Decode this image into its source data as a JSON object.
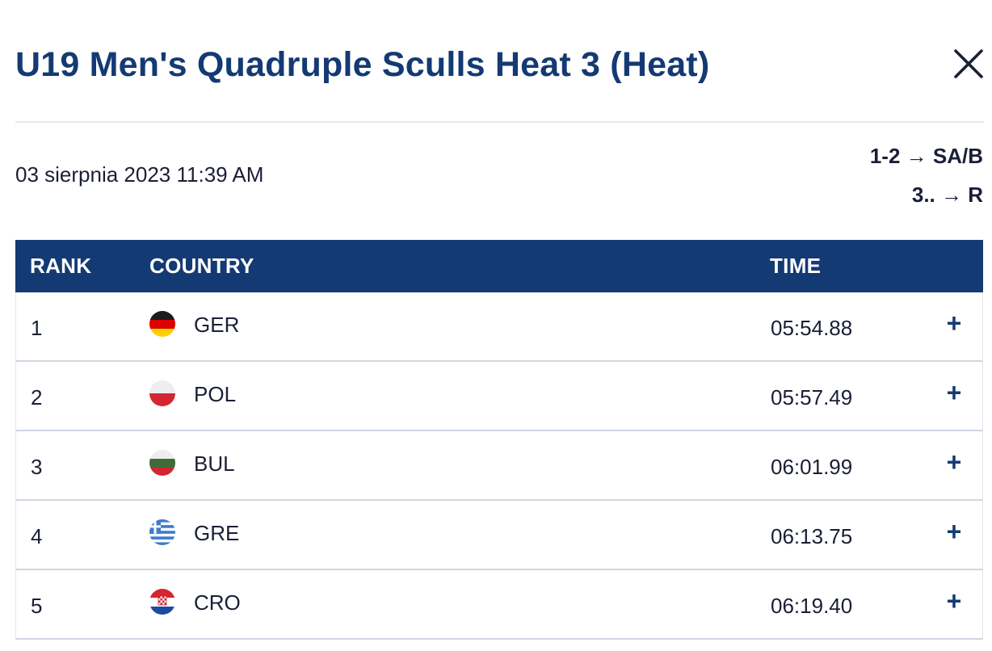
{
  "modal": {
    "title": "U19 Men's Quadruple Sculls Heat 3 (Heat)",
    "close_icon": "close-icon"
  },
  "meta": {
    "date": "03 sierpnia 2023 11:39 AM",
    "progression": [
      "1-2 → SA/B",
      "3.. → R"
    ]
  },
  "table": {
    "headers": {
      "rank": "RANK",
      "country": "COUNTRY",
      "time": "TIME"
    },
    "rows": [
      {
        "rank": "1",
        "flag": "germany-flag-icon",
        "country": "GER",
        "time": "05:54.88",
        "expand": "+"
      },
      {
        "rank": "2",
        "flag": "poland-flag-icon",
        "country": "POL",
        "time": "05:57.49",
        "expand": "+"
      },
      {
        "rank": "3",
        "flag": "bulgaria-flag-icon",
        "country": "BUL",
        "time": "06:01.99",
        "expand": "+"
      },
      {
        "rank": "4",
        "flag": "greece-flag-icon",
        "country": "GRE",
        "time": "06:13.75",
        "expand": "+"
      },
      {
        "rank": "5",
        "flag": "croatia-flag-icon",
        "country": "CRO",
        "time": "06:19.40",
        "expand": "+"
      }
    ]
  },
  "colors": {
    "primary": "#143a73",
    "text": "#1a1f36",
    "divider": "#e6e9ee"
  }
}
